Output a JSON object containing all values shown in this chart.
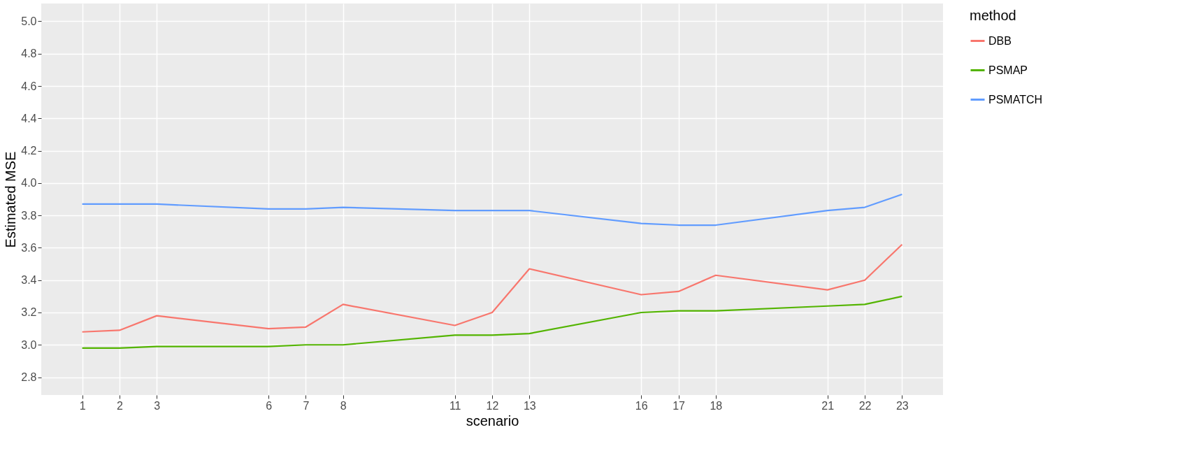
{
  "chart_data": {
    "type": "line",
    "xlabel": "scenario",
    "ylabel": "Estimated MSE",
    "legend_title": "method",
    "x": [
      1,
      2,
      3,
      6,
      7,
      8,
      11,
      12,
      13,
      16,
      17,
      18,
      21,
      22,
      23
    ],
    "series": [
      {
        "name": "DBB",
        "color": "#f8766d",
        "values": [
          3.08,
          3.09,
          3.18,
          3.1,
          3.11,
          3.25,
          3.12,
          3.2,
          3.47,
          3.31,
          3.33,
          3.43,
          3.34,
          3.4,
          3.62
        ]
      },
      {
        "name": "PSMAP",
        "color": "#53b400",
        "values": [
          2.98,
          2.98,
          2.99,
          2.99,
          3.0,
          3.0,
          3.06,
          3.06,
          3.07,
          3.2,
          3.21,
          3.21,
          3.24,
          3.25,
          3.3
        ]
      },
      {
        "name": "PSMATCH",
        "color": "#619cff",
        "values": [
          3.87,
          3.87,
          3.87,
          3.84,
          3.84,
          3.85,
          3.83,
          3.83,
          3.83,
          3.75,
          3.74,
          3.74,
          3.83,
          3.85,
          3.93
        ]
      }
    ],
    "xlim": [
      -0.1,
      24.1
    ],
    "xticks": [
      1,
      2,
      3,
      6,
      7,
      8,
      11,
      12,
      13,
      16,
      17,
      18,
      21,
      22,
      23
    ],
    "ylim": [
      2.69,
      5.11
    ],
    "yticks": [
      2.8,
      {
        "value": 3,
        "label": "3.0"
      },
      3.2,
      3.4,
      3.6,
      3.8,
      {
        "value": 4,
        "label": "4.0"
      },
      4.2,
      4.4,
      4.6,
      4.8,
      {
        "value": 5,
        "label": "5.0"
      }
    ],
    "grid": true,
    "legend": "right",
    "marker": "none",
    "line_style": "solid"
  }
}
